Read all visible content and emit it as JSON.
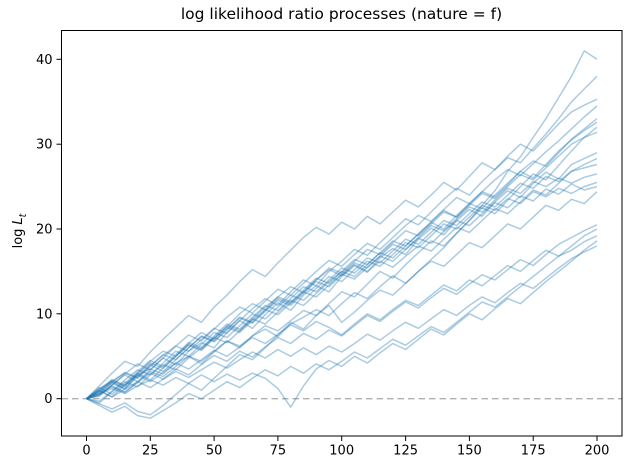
{
  "chart_data": {
    "type": "line",
    "title": "log likelihood ratio processes (nature = f)",
    "ylabel": {
      "prefix": "log",
      "var": "L",
      "sub": "t"
    },
    "xlabel": "",
    "x_ticks": [
      0,
      25,
      50,
      75,
      100,
      125,
      150,
      175,
      200
    ],
    "y_ticks": [
      0,
      10,
      20,
      30,
      40
    ],
    "xlim": [
      -9.8,
      209.8
    ],
    "ylim": [
      -4.4,
      43.4
    ],
    "grid": false,
    "legend": "none",
    "x_start": 0,
    "x_step": 5,
    "line_color": "#1f77b4",
    "line_alpha": 0.38,
    "line_width": 1.5,
    "zero_line": {
      "y": 0,
      "color": "#b0b0b0",
      "dash": "6.5 4"
    },
    "series": [
      {
        "name": "path-01",
        "values": [
          0,
          1.2,
          2,
          1.1,
          2.8,
          3.5,
          2.9,
          4.2,
          5,
          4.1,
          5.5,
          6.8,
          6,
          7.4,
          8.2,
          7.3,
          8.8,
          9.6,
          10.5,
          9.8,
          11.2,
          12.5,
          11.8,
          13.2,
          14.5,
          13.6,
          15,
          16.4,
          17.8,
          19.5,
          21,
          22.8,
          24.5,
          26.8,
          28.5,
          30.8,
          33,
          35.5,
          38,
          41,
          40
        ]
      },
      {
        "name": "path-02",
        "values": [
          0,
          0.8,
          2.1,
          3,
          2.4,
          3.8,
          5.1,
          6.2,
          5.6,
          7,
          8.3,
          7.7,
          9.2,
          10.6,
          11.8,
          11,
          12.6,
          14,
          13.3,
          15,
          16.2,
          17.6,
          16.9,
          18.4,
          19.8,
          21.2,
          20.5,
          22,
          23.5,
          24.8,
          24,
          25.6,
          27,
          28.4,
          27.8,
          29.5,
          31.2,
          33,
          35,
          36.5,
          38
        ]
      },
      {
        "name": "path-03",
        "values": [
          0,
          1.5,
          3,
          4.4,
          3.8,
          5.5,
          7,
          8.4,
          9.8,
          9,
          10.8,
          12.2,
          13.8,
          15.2,
          14.4,
          16,
          17.5,
          19,
          20.2,
          19.4,
          20.8,
          20,
          21.5,
          20.6,
          22,
          23.4,
          22.6,
          24,
          25.5,
          24.6,
          26.2,
          27.8,
          27,
          28.6,
          30,
          29.2,
          30.8,
          32.4,
          33.8,
          34.6,
          35.3
        ]
      },
      {
        "name": "path-04",
        "values": [
          0,
          -0.5,
          0.8,
          2,
          1.4,
          2.8,
          4,
          3.4,
          4.8,
          6,
          7.2,
          6.6,
          8,
          9.4,
          8.8,
          10.2,
          11.6,
          11,
          12.4,
          13.8,
          15,
          14.4,
          15.8,
          17.2,
          16.6,
          18,
          19.4,
          20.8,
          20,
          21.6,
          23,
          24.4,
          23.8,
          25.2,
          26.8,
          28,
          27.4,
          29,
          30.6,
          31.8,
          33
        ]
      },
      {
        "name": "path-05",
        "values": [
          0,
          1,
          0.2,
          1.6,
          3,
          2.2,
          3.6,
          5,
          6.4,
          5.8,
          7.2,
          8.6,
          8,
          9.4,
          10.8,
          12,
          11.4,
          12.8,
          14.2,
          13.6,
          15,
          16.4,
          15.8,
          17.2,
          18.6,
          18,
          19.4,
          20.8,
          22.2,
          21.4,
          23,
          22.4,
          24,
          25.4,
          26.8,
          26,
          27.6,
          29.2,
          30.5,
          31.6,
          32.6
        ]
      },
      {
        "name": "path-06",
        "values": [
          0,
          -0.6,
          -1.2,
          -0.5,
          -1.5,
          -1.9,
          -0.8,
          0.5,
          1.8,
          1,
          2.4,
          3.8,
          5.2,
          4.6,
          6,
          7.5,
          9,
          8.2,
          9.8,
          11.2,
          12.6,
          12,
          13.5,
          15,
          14.2,
          15.8,
          17.2,
          18.6,
          18,
          19.5,
          21,
          22.5,
          21.8,
          23.4,
          25,
          26.5,
          25.8,
          27.5,
          29.2,
          30.8,
          32
        ]
      },
      {
        "name": "path-07",
        "values": [
          0,
          0.6,
          1.8,
          1.2,
          2.6,
          4,
          3.2,
          4.6,
          6,
          7.4,
          6.8,
          8.2,
          9.6,
          9,
          10.4,
          11.8,
          11.2,
          12.6,
          14,
          15.4,
          14.8,
          16.2,
          17.6,
          17,
          18.4,
          19.8,
          19.2,
          20.6,
          22,
          21.4,
          22.8,
          24.2,
          23.6,
          25,
          26.4,
          25.8,
          27.2,
          28.6,
          30,
          30.8,
          31.4
        ]
      },
      {
        "name": "path-08",
        "values": [
          0,
          0.4,
          1.6,
          2.8,
          2,
          3.4,
          4.8,
          4,
          5.6,
          6.6,
          6,
          7.8,
          9.2,
          8.3,
          9.9,
          11.3,
          10.4,
          12.2,
          13.3,
          12.6,
          14.4,
          15.7,
          14.9,
          16.6,
          17.7,
          17,
          18.8,
          20.1,
          19.3,
          21,
          22.3,
          21.5,
          23.2,
          24.5,
          23.7,
          25.4,
          26.7,
          25.9,
          27.6,
          28.3,
          29
        ]
      },
      {
        "name": "path-09",
        "values": [
          0,
          1.1,
          2.2,
          1.5,
          3,
          4.4,
          5.6,
          5,
          6.5,
          7.8,
          7,
          8.5,
          10,
          11.2,
          10.5,
          12,
          13.2,
          12.5,
          14,
          15.2,
          14.5,
          15.8,
          15,
          16.2,
          15.5,
          16.8,
          18,
          17.4,
          18.8,
          20.2,
          19.6,
          21,
          22.4,
          21.8,
          23.2,
          24.6,
          24,
          25.4,
          26.8,
          27.6,
          28.3
        ]
      },
      {
        "name": "path-10",
        "values": [
          0,
          -0.3,
          0.9,
          2.2,
          3.4,
          2.8,
          4.2,
          5.6,
          5,
          6.4,
          7.8,
          7.2,
          8.6,
          10,
          9.4,
          10.8,
          12.2,
          11.6,
          13,
          14.4,
          13.8,
          15.2,
          16.6,
          16,
          17.4,
          18.8,
          18.2,
          19.6,
          21,
          20.4,
          21.8,
          23.2,
          22.6,
          24,
          25.4,
          24.8,
          26.2,
          25.6,
          26.8,
          27.2,
          27.6
        ]
      },
      {
        "name": "path-11",
        "values": [
          0,
          0.7,
          1.9,
          3.1,
          2.5,
          3.9,
          5.2,
          4.6,
          6,
          7.3,
          6.7,
          8.1,
          9.5,
          8.9,
          10.3,
          11.6,
          11,
          12.4,
          13.8,
          13.2,
          14.6,
          16,
          15.4,
          16.8,
          18.2,
          17.6,
          19,
          20.4,
          19.8,
          21.2,
          22.6,
          22,
          23.4,
          24.8,
          24.2,
          25.6,
          25,
          26,
          25.4,
          26.1,
          26.5
        ]
      },
      {
        "name": "path-12",
        "values": [
          0,
          1.3,
          0.5,
          1.8,
          3.2,
          4.5,
          3.8,
          5.2,
          6.6,
          6,
          7.4,
          8.8,
          8.2,
          9.6,
          11,
          10.4,
          11.8,
          13.2,
          12.6,
          14,
          15.4,
          14.8,
          16.2,
          15.6,
          17,
          18.4,
          17.8,
          19.2,
          20.6,
          20,
          21.4,
          22.8,
          22.2,
          23.6,
          23,
          24.4,
          23.8,
          24.8,
          24.2,
          25,
          25.5
        ]
      },
      {
        "name": "path-13",
        "values": [
          0,
          0.9,
          2,
          1.4,
          2.9,
          4.2,
          3.6,
          5,
          6.3,
          5.7,
          7.1,
          8.4,
          7.8,
          9.2,
          10.5,
          9.9,
          11.3,
          12.6,
          12,
          13.4,
          14.7,
          14.1,
          15.5,
          16.8,
          16.2,
          17.6,
          18.9,
          18.3,
          19.7,
          21,
          20.4,
          21.8,
          23.1,
          22.5,
          23.9,
          23.3,
          24.7,
          24.1,
          25.3,
          24.6,
          25
        ]
      },
      {
        "name": "path-14",
        "values": [
          0,
          0.5,
          1.5,
          0.8,
          2,
          3.2,
          2.6,
          3.8,
          5,
          4.4,
          5.6,
          6.8,
          6.2,
          7.4,
          8.6,
          8,
          9.2,
          10.4,
          9.8,
          11,
          9,
          10.2,
          11.6,
          12.8,
          12.2,
          13.6,
          15,
          16.2,
          15.6,
          17,
          18.4,
          17.8,
          19.2,
          20.6,
          20,
          21.4,
          22.8,
          22.2,
          23.5,
          23,
          24.4
        ]
      },
      {
        "name": "path-15",
        "values": [
          0,
          0.6,
          1.4,
          0.7,
          1.9,
          3,
          2.3,
          3.5,
          2.8,
          4,
          5.1,
          4.4,
          5.6,
          4.9,
          6.1,
          7.2,
          6.5,
          7.7,
          7,
          8.1,
          7.4,
          8.6,
          9.8,
          9.1,
          10.3,
          11.4,
          10.7,
          11.9,
          13,
          12.3,
          13.5,
          14.6,
          14,
          15.2,
          16.4,
          15.7,
          17,
          18.2,
          19,
          19.8,
          20.5
        ]
      },
      {
        "name": "path-16",
        "values": [
          0,
          -0.8,
          -1.6,
          -0.9,
          -2,
          -2.3,
          -1.4,
          -0.5,
          0.6,
          0,
          1,
          2,
          1.3,
          2.4,
          3.4,
          2.7,
          3.8,
          3,
          4.1,
          3.4,
          4.4,
          5.5,
          4.8,
          5.9,
          7,
          6.3,
          7.4,
          8.5,
          7.8,
          9,
          10.2,
          11.4,
          10.8,
          12,
          13.2,
          14.4,
          15.6,
          16.8,
          17.5,
          18.5,
          19.2
        ]
      },
      {
        "name": "path-17",
        "values": [
          0,
          0.5,
          1.2,
          0.6,
          1.5,
          2.2,
          1.6,
          2.5,
          1.8,
          2.8,
          2,
          2.9,
          2.2,
          3,
          2.4,
          1.2,
          -1,
          1.5,
          3.5,
          4.5,
          3.8,
          5,
          4.2,
          5.4,
          6.5,
          5.8,
          7,
          8.2,
          7.5,
          8.8,
          10,
          9.3,
          10.6,
          11.8,
          11.2,
          12.5,
          13.8,
          15,
          16.2,
          17.5,
          18.6
        ]
      },
      {
        "name": "path-18",
        "values": [
          0,
          0.9,
          0.2,
          1.1,
          2,
          1.3,
          2.3,
          3.2,
          2.5,
          3.4,
          4.3,
          3.6,
          4.6,
          5.5,
          4.8,
          5.8,
          5,
          6,
          5.2,
          6.2,
          5.5,
          6.5,
          7.6,
          6.9,
          8,
          9,
          8.3,
          9.4,
          10.5,
          9.8,
          11,
          12,
          11.3,
          12.5,
          13.6,
          13,
          14.2,
          15.4,
          16.5,
          17.3,
          18
        ]
      },
      {
        "name": "path-19",
        "values": [
          0,
          1,
          2.2,
          1.6,
          2.8,
          2,
          3.1,
          4.2,
          3.5,
          4.6,
          5.7,
          5,
          6.1,
          7.2,
          6.5,
          7.6,
          8.7,
          8,
          9.1,
          8.4,
          7.5,
          8.8,
          10,
          9.3,
          10.5,
          11.6,
          11,
          12.2,
          13.4,
          12.7,
          14,
          13.3,
          14.5,
          15.7,
          15,
          16.3,
          17.5,
          16.8,
          18,
          19.2,
          20
        ]
      },
      {
        "name": "path-20",
        "values": [
          0,
          0.3,
          1.6,
          2.9,
          4.1,
          3.4,
          4.8,
          6.2,
          7.5,
          6.8,
          8.2,
          9.6,
          10.8,
          10.1,
          11.5,
          12.9,
          12.2,
          13.6,
          15,
          16.3,
          15.6,
          17,
          18.3,
          17.6,
          19,
          20.4,
          21.6,
          20.9,
          22.3,
          23.7,
          23,
          24.4,
          25.8,
          27,
          26.3,
          27.7,
          29.1,
          30.4,
          31.8,
          33.2,
          34.5
        ]
      }
    ]
  }
}
